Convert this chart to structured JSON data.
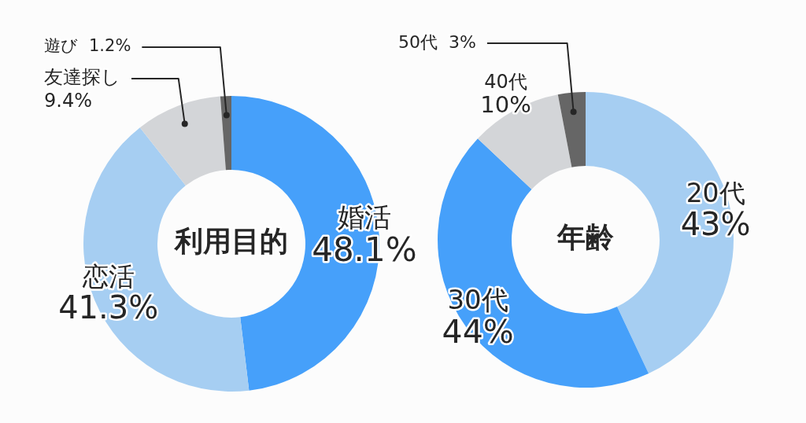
{
  "chart_data": [
    {
      "type": "donut",
      "title": "利用目的",
      "categories": [
        "婚活",
        "恋活",
        "友達探し",
        "遊び"
      ],
      "values": [
        48.1,
        41.3,
        9.4,
        1.2
      ],
      "colors": [
        "#46a0fa",
        "#a6cef2",
        "#d3d5d8",
        "#666666"
      ],
      "value_labels": [
        "48.1%",
        "41.3%",
        "9.4%",
        "1.2%"
      ]
    },
    {
      "type": "donut",
      "title": "年齢",
      "categories": [
        "20代",
        "30代",
        "40代",
        "50代"
      ],
      "values": [
        43,
        44,
        10,
        3
      ],
      "colors": [
        "#a6cef2",
        "#46a0fa",
        "#d3d5d8",
        "#666666"
      ],
      "value_labels": [
        "43%",
        "44%",
        "10%",
        "3%"
      ]
    }
  ]
}
